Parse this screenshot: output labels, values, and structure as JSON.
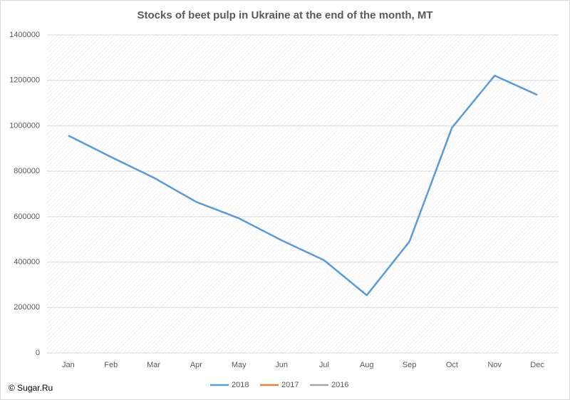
{
  "chart_data": {
    "type": "line",
    "title": "Stocks of beet pulp in Ukraine at the end of the month, MT",
    "categories": [
      "Jan",
      "Feb",
      "Mar",
      "Apr",
      "May",
      "Jun",
      "Jul",
      "Aug",
      "Sep",
      "Oct",
      "Nov",
      "Dec"
    ],
    "series": [
      {
        "name": "2018",
        "color": "#5b9bd5",
        "values": [
          957000,
          863000,
          772000,
          665000,
          593000,
          496000,
          408000,
          254000,
          490000,
          992000,
          1221000,
          1136000
        ]
      },
      {
        "name": "2017",
        "color": "#ed7d31",
        "values": [
          null,
          null,
          null,
          null,
          null,
          null,
          null,
          null,
          null,
          null,
          null,
          null
        ]
      },
      {
        "name": "2016",
        "color": "#a5a5a5",
        "values": [
          null,
          null,
          null,
          null,
          null,
          null,
          null,
          null,
          null,
          null,
          null,
          null
        ]
      }
    ],
    "ylim": [
      0,
      1400000
    ],
    "yticks": [
      0,
      200000,
      400000,
      600000,
      800000,
      1000000,
      1200000,
      1400000
    ],
    "grid": true,
    "legend": "bottom",
    "copyright": "© Sugar.Ru"
  }
}
